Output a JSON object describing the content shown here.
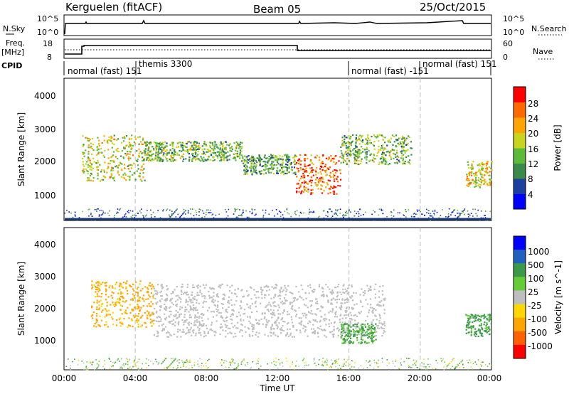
{
  "header": {
    "station": "Kerguelen (fitACF)",
    "beam": "Beam 05",
    "date": "25/Oct/2015"
  },
  "noise_panel": {
    "label": "N.Sky",
    "right_label": "N.Search",
    "left_ticks": [
      "10^5",
      "10^0"
    ],
    "right_ticks": [
      "10^5",
      "10^0"
    ]
  },
  "freq_panel": {
    "label": "Freq.",
    "unit": "[MHz]",
    "right_label": "Nave",
    "left_ticks": [
      "18",
      "8"
    ],
    "right_ticks": [
      "60",
      "0"
    ]
  },
  "cpid_panel": {
    "label": "CPID",
    "segments": [
      {
        "start_hour": 0,
        "end_hour": 4,
        "text": "normal (fast) 151",
        "tick": "151"
      },
      {
        "start_hour": 4,
        "end_hour": 16,
        "text": "themis 3300",
        "tick": "3300"
      },
      {
        "start_hour": 16,
        "end_hour": 20,
        "text": "normal (fast) -151",
        "tick": "-151"
      },
      {
        "start_hour": 20,
        "end_hour": 24,
        "text": "normal (fast) 151",
        "tick": "151"
      }
    ]
  },
  "x_axis": {
    "title": "Time UT",
    "ticks": [
      "00:00",
      "04:00",
      "08:00",
      "12:00",
      "16:00",
      "20:00",
      "00:00"
    ]
  },
  "power_panel": {
    "ylabel": "Slant Range [km]",
    "yticks": [
      "1000",
      "2000",
      "3000",
      "4000"
    ],
    "colorbar_label": "Power [dB]",
    "colorbar_ticks": [
      "4",
      "8",
      "12",
      "16",
      "20",
      "24",
      "28"
    ],
    "colors": [
      "#0000ff",
      "#1c3fa0",
      "#3a8a4a",
      "#5dbb3a",
      "#c8d41e",
      "#ffa500",
      "#ff6a00",
      "#ff0000"
    ]
  },
  "velocity_panel": {
    "ylabel": "Slant Range [km]",
    "yticks": [
      "1000",
      "2000",
      "3000",
      "4000"
    ],
    "colorbar_label": "Velocity [m s^-1]",
    "colorbar_ticks": [
      "1000",
      "500",
      "100",
      "25",
      "-25",
      "-100",
      "-500",
      "-1000"
    ],
    "colors": [
      "#0000ff",
      "#2060c0",
      "#3a9a4a",
      "#66cc33",
      "#bebebe",
      "#ffd700",
      "#ffa500",
      "#ff6000",
      "#ff0000"
    ]
  },
  "chart_data": {
    "type": "heatmap",
    "x_range_hours": [
      0,
      24
    ],
    "y_range_km": [
      180,
      4500
    ],
    "power_scatter_bands": [
      {
        "t": [
          1.0,
          4.5
        ],
        "r": [
          1400,
          2800
        ],
        "power_db": 18
      },
      {
        "t": [
          4.5,
          10.0
        ],
        "r": [
          2000,
          2600
        ],
        "power_db": 14
      },
      {
        "t": [
          10.0,
          13.0
        ],
        "r": [
          1600,
          2200
        ],
        "power_db": 12
      },
      {
        "t": [
          13.0,
          15.5
        ],
        "r": [
          1000,
          2200
        ],
        "power_db": 26
      },
      {
        "t": [
          15.5,
          19.5
        ],
        "r": [
          1900,
          2800
        ],
        "power_db": 14
      },
      {
        "t": [
          22.5,
          24.0
        ],
        "r": [
          1200,
          2000
        ],
        "power_db": 20
      }
    ],
    "velocity_scatter_bands": [
      {
        "t": [
          1.5,
          5.0
        ],
        "r": [
          1500,
          2900
        ],
        "velocity_ms": -150
      },
      {
        "t": [
          5.0,
          18.0
        ],
        "r": [
          1200,
          2800
        ],
        "velocity_ms": 0
      },
      {
        "t": [
          15.5,
          17.5
        ],
        "r": [
          1000,
          1600
        ],
        "velocity_ms": 120
      },
      {
        "t": [
          22.5,
          24.0
        ],
        "r": [
          1200,
          1900
        ],
        "velocity_ms": 150
      }
    ]
  }
}
